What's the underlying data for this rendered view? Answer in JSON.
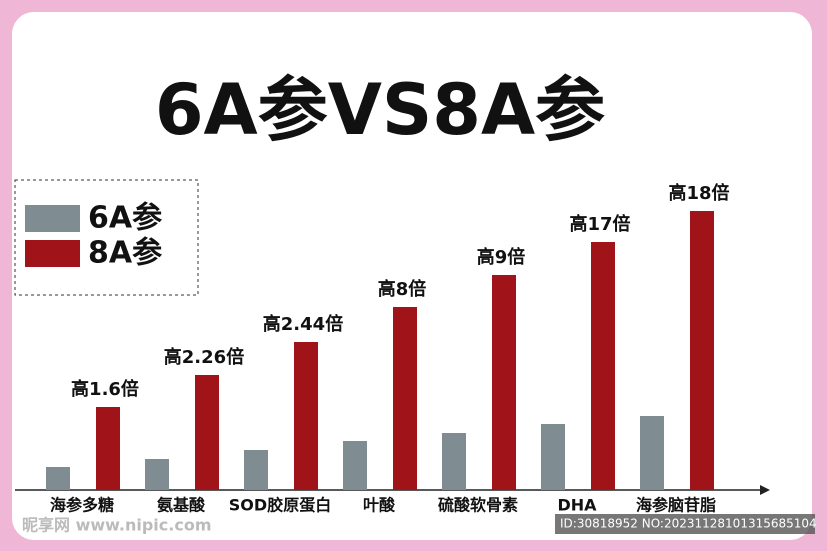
{
  "chart_data": {
    "type": "bar",
    "title": "6A参VS8A参",
    "categories": [
      "海参多糖",
      "氨基酸",
      "SOD胶原蛋白",
      "叶酸",
      "硫酸软骨素",
      "DHA",
      "海参脑苷脂"
    ],
    "series": [
      {
        "name": "6A参",
        "color": "#7f8c91",
        "values": [
          23,
          31,
          40,
          49,
          57,
          66,
          74
        ]
      },
      {
        "name": "8A参",
        "color": "#a01419",
        "values": [
          83,
          115,
          148,
          183,
          215,
          248,
          279
        ]
      }
    ],
    "annotations": [
      "高1.6倍",
      "高2.26倍",
      "高2.44倍",
      "高8倍",
      "高9倍",
      "高17倍",
      "高18倍"
    ],
    "ylim": [
      0,
      300
    ],
    "watermark": {
      "site": "昵享网 www.nipic.com",
      "id": "ID:30818952 NO:20231128101315685104"
    }
  }
}
